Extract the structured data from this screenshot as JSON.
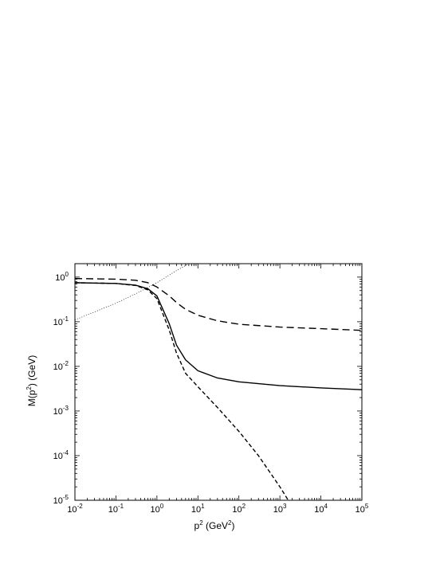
{
  "chart_data": {
    "type": "line",
    "title": "",
    "xlabel": {
      "base": "p",
      "sup": "2",
      "unit_pre": " (GeV",
      "unit_sup": "2",
      "unit_post": ")"
    },
    "ylabel": {
      "pre": "M(p",
      "sup": "2",
      "post": ") (GeV)"
    },
    "xscale": "log",
    "yscale": "log",
    "xlim": [
      0.01,
      100000
    ],
    "ylim": [
      1e-05,
      2
    ],
    "grid": false,
    "legend": "none",
    "x_ticks": [
      {
        "value": 0.01,
        "base": "10",
        "exp": "-2"
      },
      {
        "value": 0.1,
        "base": "10",
        "exp": "-1"
      },
      {
        "value": 1,
        "base": "10",
        "exp": "0"
      },
      {
        "value": 10,
        "base": "10",
        "exp": "1"
      },
      {
        "value": 100,
        "base": "10",
        "exp": "2"
      },
      {
        "value": 1000,
        "base": "10",
        "exp": "3"
      },
      {
        "value": 10000,
        "base": "10",
        "exp": "4"
      },
      {
        "value": 100000,
        "base": "10",
        "exp": "5"
      }
    ],
    "y_ticks": [
      {
        "value": 1,
        "base": "10",
        "exp": "0"
      },
      {
        "value": 0.1,
        "base": "10",
        "exp": "-1"
      },
      {
        "value": 0.01,
        "base": "10",
        "exp": "-2"
      },
      {
        "value": 0.001,
        "base": "10",
        "exp": "-3"
      },
      {
        "value": 0.0001,
        "base": "10",
        "exp": "-4"
      },
      {
        "value": 1e-05,
        "base": "10",
        "exp": "-5"
      }
    ],
    "series": [
      {
        "style": "dotted",
        "points": [
          [
            0.01,
            0.11
          ],
          [
            0.1,
            0.26
          ],
          [
            0.3,
            0.42
          ],
          [
            1,
            0.75
          ],
          [
            3,
            1.4
          ],
          [
            6,
            2.0
          ]
        ]
      },
      {
        "style": "long-dash",
        "points": [
          [
            0.01,
            0.93
          ],
          [
            0.1,
            0.9
          ],
          [
            0.3,
            0.85
          ],
          [
            0.6,
            0.75
          ],
          [
            1,
            0.6
          ],
          [
            2,
            0.38
          ],
          [
            3,
            0.27
          ],
          [
            5,
            0.19
          ],
          [
            10,
            0.14
          ],
          [
            30,
            0.105
          ],
          [
            100,
            0.088
          ],
          [
            1000,
            0.076
          ],
          [
            10000,
            0.07
          ],
          [
            100000,
            0.064
          ]
        ]
      },
      {
        "style": "solid",
        "points": [
          [
            0.01,
            0.75
          ],
          [
            0.1,
            0.72
          ],
          [
            0.3,
            0.66
          ],
          [
            0.6,
            0.55
          ],
          [
            1,
            0.38
          ],
          [
            2,
            0.09
          ],
          [
            3,
            0.03
          ],
          [
            5,
            0.014
          ],
          [
            10,
            0.008
          ],
          [
            30,
            0.0055
          ],
          [
            100,
            0.0045
          ],
          [
            1000,
            0.0037
          ],
          [
            10000,
            0.0033
          ],
          [
            100000,
            0.003
          ]
        ]
      },
      {
        "style": "short-dash",
        "points": [
          [
            0.01,
            0.75
          ],
          [
            0.1,
            0.72
          ],
          [
            0.3,
            0.65
          ],
          [
            0.6,
            0.52
          ],
          [
            1,
            0.33
          ],
          [
            2,
            0.065
          ],
          [
            3,
            0.02
          ],
          [
            5,
            0.007
          ],
          [
            10,
            0.0035
          ],
          [
            30,
            0.0012
          ],
          [
            100,
            0.00035
          ],
          [
            300,
            0.0001
          ],
          [
            1000,
            2e-05
          ],
          [
            1600,
            1e-05
          ]
        ]
      }
    ]
  }
}
